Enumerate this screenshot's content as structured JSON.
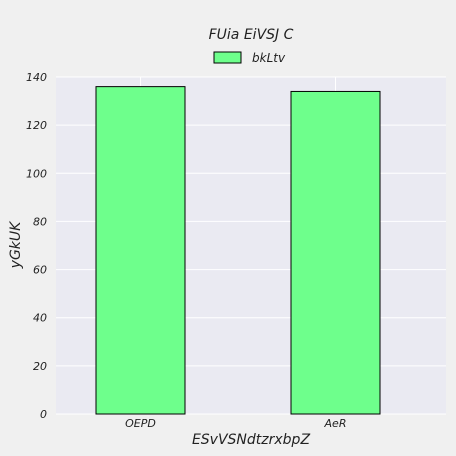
{
  "chart_data": {
    "type": "bar",
    "title": "FUia  EiVSJ  C",
    "xlabel": "ESvVSNdtzrxbpZ",
    "ylabel": "yGkUK",
    "categories": [
      "OEPD",
      "AeR"
    ],
    "series": [
      {
        "name": "bkLtv",
        "values": [
          136,
          134
        ]
      }
    ],
    "ylim": [
      0,
      140
    ],
    "yticks": [
      0,
      20,
      40,
      60,
      80,
      100,
      120,
      140
    ],
    "grid": true,
    "legend_position": "top-center",
    "colors": {
      "bar_fill": "#6eff8c",
      "bar_stroke": "#000000",
      "plot_bg": "#eaeaf2",
      "grid": "#ffffff"
    }
  }
}
